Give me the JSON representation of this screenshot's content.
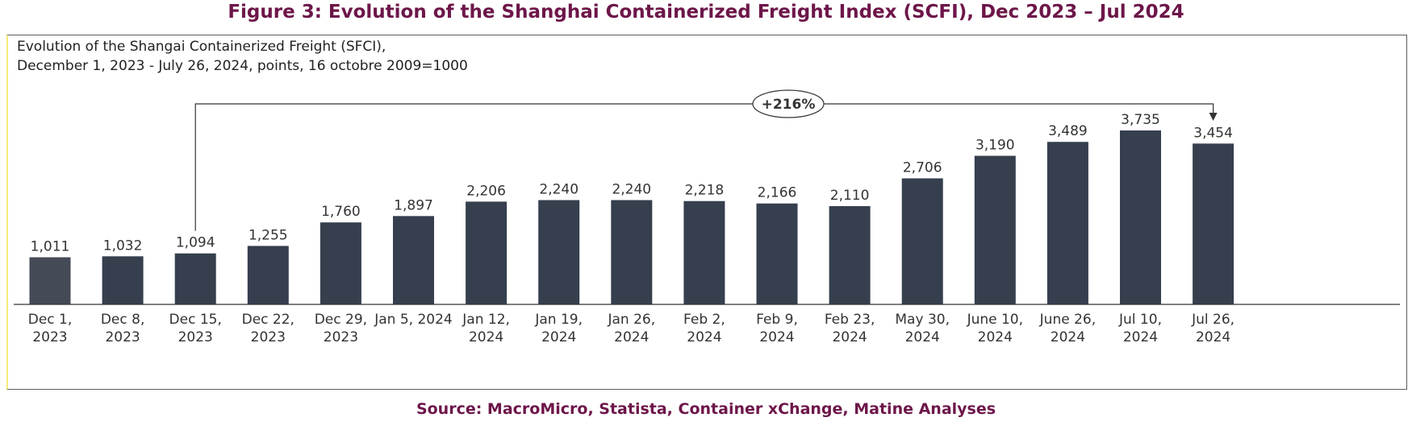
{
  "figure_title": "Figure 3: Evolution of the Shanghai Containerized Freight Index (SCFI), Dec 2023 – Jul 2024",
  "source": "Source: MacroMicro, Statista, Container xChange, Matine Analyses",
  "colors": {
    "title": "#6d1649",
    "bar": "#353f4e",
    "bar_first": "#454a57",
    "axis": "#333333"
  },
  "chart_data": {
    "type": "bar",
    "title": "Evolution of the Shangai Containerized Freight (SFCI),",
    "subtitle": "December 1, 2023 - July 26, 2024, points, 16 octobre 2009=1000",
    "xlabel": "",
    "ylabel": "",
    "categories": [
      [
        "Dec 1,",
        "2023"
      ],
      [
        "Dec 8,",
        "2023"
      ],
      [
        "Dec 15,",
        "2023"
      ],
      [
        "Dec 22,",
        "2023"
      ],
      [
        "Dec 29,",
        "2023"
      ],
      [
        "Jan 5, 2024"
      ],
      [
        "Jan 12,",
        "2024"
      ],
      [
        "Jan 19,",
        "2024"
      ],
      [
        "Jan 26,",
        "2024"
      ],
      [
        "Feb 2,",
        "2024"
      ],
      [
        "Feb 9,",
        "2024"
      ],
      [
        "Feb 23,",
        "2024"
      ],
      [
        "May 30,",
        "2024"
      ],
      [
        "June 10,",
        "2024"
      ],
      [
        "June 26,",
        "2024"
      ],
      [
        "Jul 10,",
        "2024"
      ],
      [
        "Jul 26,",
        "2024"
      ]
    ],
    "values": [
      1011,
      1032,
      1094,
      1255,
      1760,
      1897,
      2206,
      2240,
      2240,
      2218,
      2166,
      2110,
      2706,
      3190,
      3489,
      3735,
      3454
    ],
    "value_labels": [
      "1,011",
      "1,032",
      "1,094",
      "1,255",
      "1,760",
      "1,897",
      "2,206",
      "2,240",
      "2,240",
      "2,218",
      "2,166",
      "2,110",
      "2,706",
      "3,190",
      "3,489",
      "3,735",
      "3,454"
    ],
    "ylim": [
      0,
      3735
    ],
    "grid": false,
    "legend": "none",
    "annotation": {
      "label": "+216%",
      "from_index": 2,
      "to_index": 16
    }
  }
}
